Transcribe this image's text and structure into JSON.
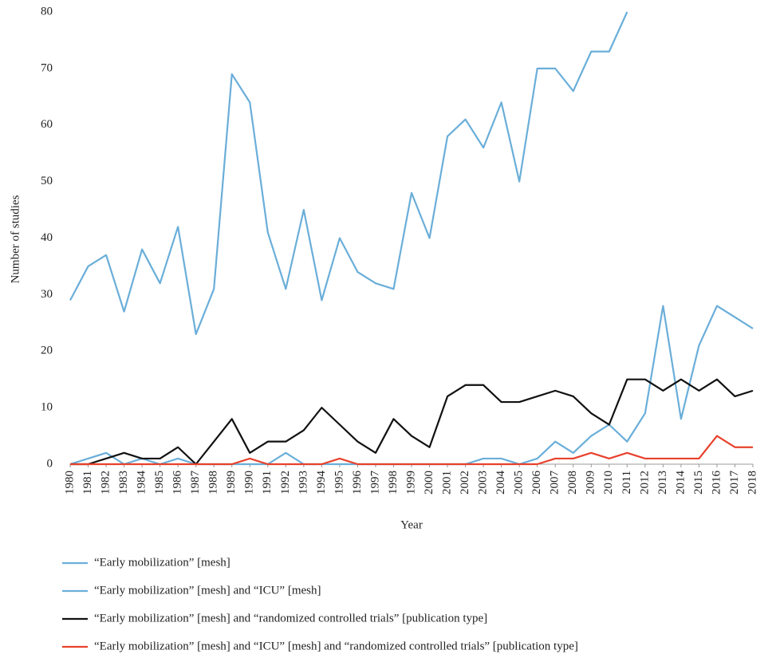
{
  "chart_data": {
    "type": "line",
    "y_label": "Number of studies",
    "x_label": "Year",
    "categories": [
      "1980",
      "1981",
      "1982",
      "1983",
      "1984",
      "1985",
      "1986",
      "1987",
      "1988",
      "1989",
      "1990",
      "1991",
      "1992",
      "1993",
      "1994",
      "1995",
      "1996",
      "1997",
      "1998",
      "1999",
      "2000",
      "2001",
      "2002",
      "2003",
      "2004",
      "2005",
      "2006",
      "2007",
      "2008",
      "2009",
      "2010",
      "2011",
      "2012",
      "2013",
      "2014",
      "2015",
      "2016",
      "2017",
      "2018"
    ],
    "ylim": [
      0,
      80
    ],
    "yticks": [
      0,
      10,
      20,
      30,
      40,
      50,
      60,
      70,
      80
    ],
    "grid": false,
    "legend": "bottom",
    "series": [
      {
        "name": "“Early mobilization” [mesh]",
        "color": "#6aaed9",
        "values": [
          29,
          35,
          37,
          27,
          38,
          32,
          42,
          23,
          31,
          69,
          64,
          41,
          31,
          45,
          29,
          40,
          34,
          32,
          31,
          48,
          40,
          58,
          61,
          56,
          64,
          50,
          70,
          70,
          66,
          73,
          73,
          80,
          null,
          null,
          null,
          null,
          null,
          null,
          null
        ]
      },
      {
        "name": "“Early mobilization” [mesh] and “ICU” [mesh]",
        "color": "#6aaed9",
        "values": [
          0,
          1,
          2,
          0,
          1,
          0,
          1,
          0,
          0,
          0,
          0,
          0,
          2,
          0,
          0,
          0,
          0,
          0,
          0,
          0,
          0,
          0,
          0,
          1,
          1,
          0,
          1,
          4,
          2,
          5,
          7,
          4,
          9,
          28,
          8,
          21,
          28,
          26,
          24
        ]
      },
      {
        "name": "“Early mobilization” [mesh] and “randomized controlled trials” [publication type]",
        "color": "#111111",
        "values": [
          0,
          0,
          1,
          2,
          1,
          1,
          3,
          0,
          4,
          8,
          2,
          4,
          4,
          6,
          10,
          7,
          4,
          2,
          8,
          5,
          3,
          12,
          14,
          14,
          11,
          11,
          12,
          13,
          12,
          9,
          7,
          15,
          15,
          13,
          15,
          13,
          15,
          12,
          13
        ]
      },
      {
        "name": "“Early mobilization” [mesh] and “ICU” [mesh] and “randomized controlled trials” [publication type]",
        "color": "#e8412c",
        "values": [
          0,
          0,
          0,
          0,
          0,
          0,
          0,
          0,
          0,
          0,
          1,
          0,
          0,
          0,
          0,
          1,
          0,
          0,
          0,
          0,
          0,
          0,
          0,
          0,
          0,
          0,
          0,
          1,
          1,
          2,
          1,
          2,
          1,
          1,
          1,
          1,
          5,
          3,
          3
        ]
      }
    ]
  }
}
